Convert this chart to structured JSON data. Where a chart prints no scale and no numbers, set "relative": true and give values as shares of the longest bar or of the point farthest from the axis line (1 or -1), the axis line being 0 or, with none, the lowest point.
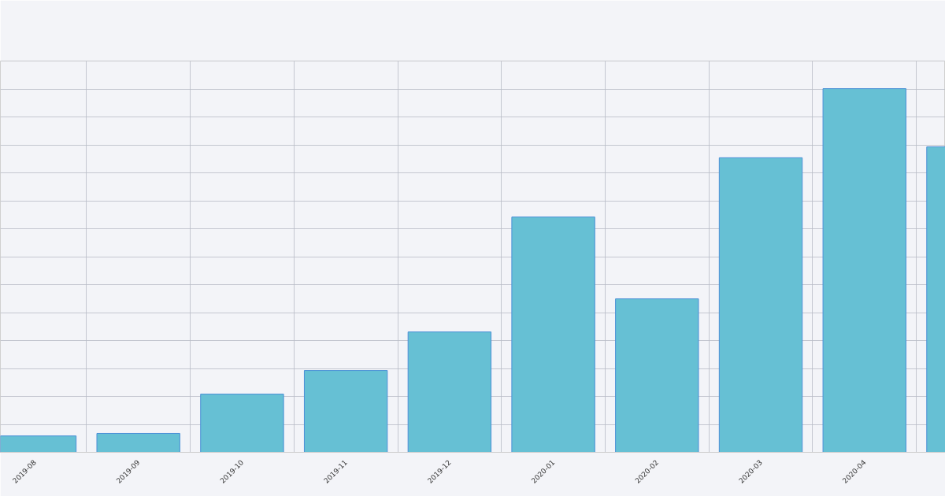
{
  "chart_data": {
    "type": "bar",
    "relative": true,
    "categories": [
      "2019-08",
      "2019-09",
      "2019-10",
      "2019-11",
      "2019-12",
      "2020-01",
      "2020-02",
      "2020-03",
      "2020-04",
      null
    ],
    "values": [
      0.045,
      0.052,
      0.16,
      0.225,
      0.331,
      0.647,
      0.422,
      0.81,
      1,
      0.84
    ],
    "color": "#66c0d4",
    "grid": true
  }
}
